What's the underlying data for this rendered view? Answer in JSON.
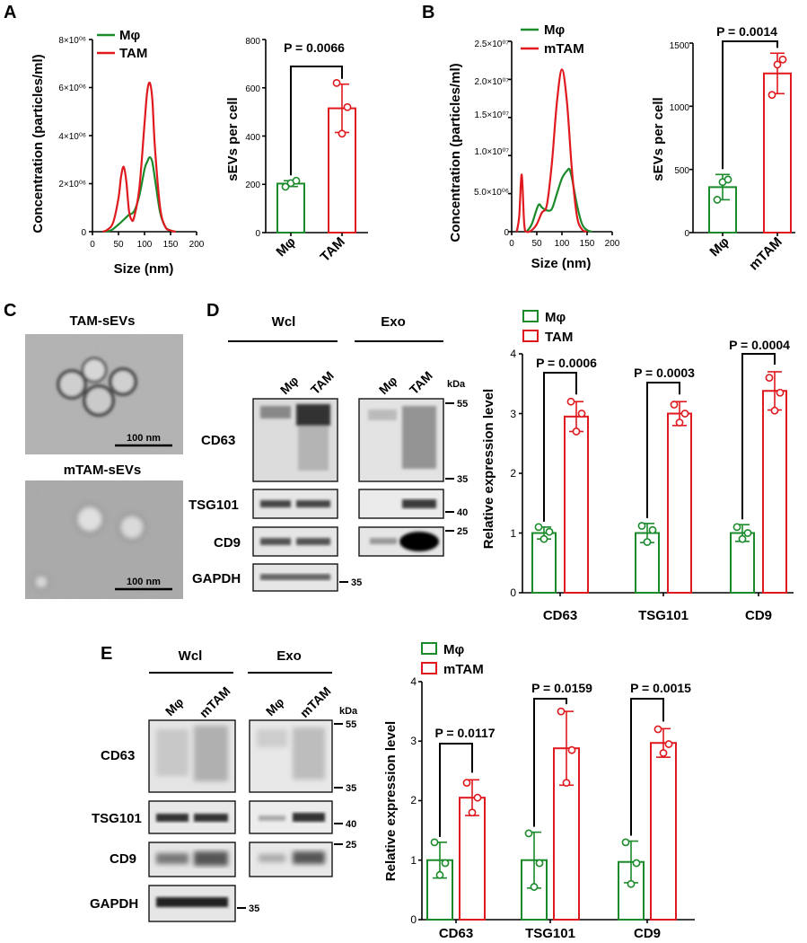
{
  "panels": {
    "A": "A",
    "B": "B",
    "C": "C",
    "D": "D",
    "E": "E"
  },
  "colors": {
    "green": "#1a8a2a",
    "red": "#e0191e"
  },
  "panel_a": {
    "nta": {
      "ylabel": "Concentration (particles/ml)",
      "xlabel": "Size (nm)",
      "yticks": [
        "0",
        "2×10⁰⁶",
        "4×10⁰⁶",
        "6×10⁰⁶",
        "8×10⁰⁶"
      ],
      "xticks": [
        "0",
        "50",
        "100",
        "150",
        "200"
      ],
      "legend": [
        "Mφ",
        "TAM"
      ]
    },
    "bar": {
      "ylabel": "sEVs per cell",
      "yticks": [
        "0",
        "200",
        "400",
        "600",
        "800"
      ],
      "categories": [
        "Mφ",
        "TAM"
      ],
      "p": "P = 0.0066"
    }
  },
  "panel_b": {
    "nta": {
      "ylabel": "Concentration (particles/ml)",
      "xlabel": "Size (nm)",
      "yticks": [
        "0",
        "5.0×10⁰⁶",
        "1.0×10⁰⁷",
        "1.5×10⁰⁷",
        "2.0×10⁰⁷",
        "2.5×10⁰⁷"
      ],
      "xticks": [
        "0",
        "50",
        "100",
        "150",
        "200"
      ],
      "legend": [
        "Mφ",
        "mTAM"
      ]
    },
    "bar": {
      "ylabel": "sEVs per cell",
      "yticks": [
        "0",
        "500",
        "1000",
        "1500"
      ],
      "categories": [
        "Mφ",
        "mTAM"
      ],
      "p": "P = 0.0014"
    }
  },
  "panel_c": {
    "top_label": "TAM-sEVs",
    "bottom_label": "mTAM-sEVs",
    "scale_top": "100 nm",
    "scale_bottom": "100 nm"
  },
  "panel_d": {
    "blot": {
      "group1": "Wcl",
      "group2": "Exo",
      "lanes1": [
        "Mφ",
        "TAM"
      ],
      "lanes2": [
        "Mφ",
        "TAM"
      ],
      "kda": "kDa",
      "rows": [
        "CD63",
        "TSG101",
        "CD9",
        "GAPDH"
      ],
      "markers": [
        "55",
        "35",
        "40",
        "25",
        "35"
      ]
    },
    "bar": {
      "ylabel": "Relative expression level",
      "yticks": [
        "0",
        "1",
        "2",
        "3",
        "4"
      ],
      "categories": [
        "CD63",
        "TSG101",
        "CD9"
      ],
      "legend": [
        "Mφ",
        "TAM"
      ],
      "p": [
        "P = 0.0006",
        "P = 0.0003",
        "P = 0.0004"
      ]
    }
  },
  "panel_e": {
    "blot": {
      "group1": "Wcl",
      "group2": "Exo",
      "lanes1": [
        "Mφ",
        "mTAM"
      ],
      "lanes2": [
        "Mφ",
        "mTAM"
      ],
      "kda": "kDa",
      "rows": [
        "CD63",
        "TSG101",
        "CD9",
        "GAPDH"
      ],
      "markers": [
        "55",
        "35",
        "40",
        "25",
        "35"
      ]
    },
    "bar": {
      "ylabel": "Relative expression level",
      "yticks": [
        "0",
        "1",
        "2",
        "3",
        "4"
      ],
      "categories": [
        "CD63",
        "TSG101",
        "CD9"
      ],
      "legend": [
        "Mφ",
        "mTAM"
      ],
      "p": [
        "P = 0.0117",
        "P = 0.0159",
        "P = 0.0015"
      ]
    }
  },
  "chart_data": [
    {
      "id": "A-nta",
      "type": "line",
      "title": "",
      "xlabel": "Size (nm)",
      "ylabel": "Concentration (particles/ml)",
      "xlim": [
        0,
        200
      ],
      "ylim": [
        0,
        8000000
      ],
      "series": [
        {
          "name": "Mφ",
          "x": [
            20,
            35,
            50,
            60,
            70,
            80,
            90,
            100,
            105,
            110,
            115,
            120,
            130,
            140,
            150,
            160
          ],
          "values": [
            0,
            50000,
            300000,
            500000,
            700000,
            850000,
            1500000,
            2600000,
            2900000,
            3100000,
            2900000,
            2200000,
            800000,
            200000,
            50000,
            0
          ]
        },
        {
          "name": "TAM",
          "x": [
            20,
            30,
            40,
            50,
            55,
            60,
            65,
            70,
            75,
            80,
            90,
            100,
            105,
            110,
            115,
            120,
            130,
            140,
            150,
            160
          ],
          "values": [
            0,
            100000,
            400000,
            1400000,
            2300000,
            2700000,
            2100000,
            900000,
            500000,
            600000,
            1800000,
            4500000,
            5800000,
            6200000,
            5500000,
            3500000,
            1000000,
            200000,
            50000,
            0
          ]
        }
      ]
    },
    {
      "id": "A-bar",
      "type": "bar",
      "title": "",
      "xlabel": "",
      "ylabel": "sEVs per cell",
      "categories": [
        "Mφ",
        "TAM"
      ],
      "ylim": [
        0,
        800
      ],
      "values": [
        203,
        515
      ],
      "errors": [
        12,
        100
      ],
      "points": [
        [
          190,
          205,
          215
        ],
        [
          620,
          410,
          520
        ]
      ]
    },
    {
      "id": "B-nta",
      "type": "line",
      "title": "",
      "xlabel": "Size (nm)",
      "ylabel": "Concentration (particles/ml)",
      "xlim": [
        0,
        200
      ],
      "ylim": [
        0,
        25000000
      ],
      "series": [
        {
          "name": "Mφ",
          "x": [
            30,
            40,
            50,
            55,
            60,
            70,
            80,
            90,
            100,
            110,
            115,
            120,
            130,
            140,
            150,
            160
          ],
          "values": [
            0,
            1000000,
            3000000,
            3600000,
            3200000,
            2800000,
            3000000,
            5000000,
            7000000,
            8000000,
            8200000,
            7000000,
            3500000,
            1000000,
            200000,
            0
          ]
        },
        {
          "name": "mTAM",
          "x": [
            10,
            15,
            20,
            25,
            30,
            40,
            50,
            60,
            70,
            80,
            90,
            100,
            110,
            120,
            130,
            140,
            150
          ],
          "values": [
            0,
            2000000,
            7500000,
            1000000,
            0,
            200000,
            1000000,
            2500000,
            3500000,
            9000000,
            17000000,
            21300000,
            17000000,
            8000000,
            2000000,
            300000,
            0
          ]
        }
      ]
    },
    {
      "id": "B-bar",
      "type": "bar",
      "title": "",
      "xlabel": "",
      "ylabel": "sEVs per cell",
      "categories": [
        "Mφ",
        "mTAM"
      ],
      "ylim": [
        0,
        1500
      ],
      "values": [
        360,
        1260
      ],
      "errors": [
        100,
        160
      ],
      "points": [
        [
          260,
          400,
          420
        ],
        [
          1090,
          1330,
          1370
        ]
      ]
    },
    {
      "id": "D-bar",
      "type": "bar",
      "title": "",
      "xlabel": "",
      "ylabel": "Relative expression level",
      "categories": [
        "CD63",
        "TSG101",
        "CD9"
      ],
      "ylim": [
        0,
        4
      ],
      "series": [
        {
          "name": "Mφ",
          "values": [
            1.0,
            1.0,
            1.0
          ],
          "errors": [
            0.1,
            0.16,
            0.14
          ],
          "points": [
            [
              1.1,
              0.9,
              1.02
            ],
            [
              1.12,
              0.85,
              1.05
            ],
            [
              1.1,
              0.9,
              1.0
            ]
          ]
        },
        {
          "name": "TAM",
          "values": [
            2.95,
            3.0,
            3.38
          ],
          "errors": [
            0.25,
            0.2,
            0.32
          ],
          "points": [
            [
              3.2,
              2.7,
              3.0
            ],
            [
              3.15,
              2.85,
              3.0
            ],
            [
              3.6,
              3.05,
              3.35
            ]
          ]
        }
      ],
      "pvalues": [
        "P = 0.0006",
        "P = 0.0003",
        "P = 0.0004"
      ]
    },
    {
      "id": "E-bar",
      "type": "bar",
      "title": "",
      "xlabel": "",
      "ylabel": "Relative expression level",
      "categories": [
        "CD63",
        "TSG101",
        "CD9"
      ],
      "ylim": [
        0,
        4
      ],
      "series": [
        {
          "name": "Mφ",
          "values": [
            1.0,
            1.0,
            0.97
          ],
          "errors": [
            0.3,
            0.47,
            0.35
          ],
          "points": [
            [
              1.3,
              0.75,
              0.95
            ],
            [
              1.45,
              0.55,
              0.95
            ],
            [
              1.3,
              0.6,
              0.95
            ]
          ]
        },
        {
          "name": "mTAM",
          "values": [
            2.05,
            2.88,
            2.97
          ],
          "errors": [
            0.3,
            0.62,
            0.24
          ],
          "points": [
            [
              2.3,
              1.8,
              2.05
            ],
            [
              3.5,
              2.3,
              2.85
            ],
            [
              3.2,
              2.8,
              2.95
            ]
          ]
        }
      ],
      "pvalues": [
        "P = 0.0117",
        "P = 0.0159",
        "P = 0.0015"
      ]
    }
  ]
}
